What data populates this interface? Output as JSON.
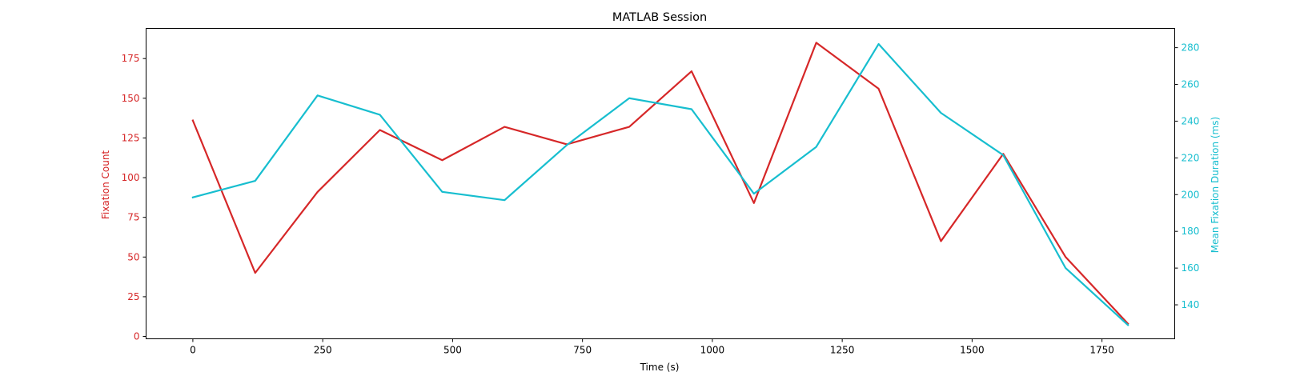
{
  "chart_data": {
    "type": "line",
    "title": "MATLAB Session",
    "xlabel": "Time (s)",
    "ylabel_left": "Fixation Count",
    "ylabel_right": "Mean Fixation Duration (ms)",
    "xlim": [
      -90,
      1890
    ],
    "ylim_left": [
      -1.5,
      194
    ],
    "ylim_right": [
      121.5,
      290.5
    ],
    "x_ticks": [
      0,
      250,
      500,
      750,
      1000,
      1250,
      1500,
      1750
    ],
    "y_ticks_left": [
      0,
      25,
      50,
      75,
      100,
      125,
      150,
      175
    ],
    "y_ticks_right": [
      140,
      160,
      180,
      200,
      220,
      240,
      260,
      280
    ],
    "grid": false,
    "x": [
      0,
      120,
      240,
      360,
      480,
      600,
      720,
      840,
      960,
      1080,
      1200,
      1320,
      1440,
      1560,
      1680,
      1800
    ],
    "series": [
      {
        "axis": "left",
        "color": "#d62728",
        "values": [
          136,
          40,
          91,
          130,
          111,
          132,
          121,
          132,
          167,
          84,
          185,
          156,
          60,
          115,
          50,
          8
        ]
      },
      {
        "axis": "right",
        "color": "#17becf",
        "values": [
          198.5,
          207.5,
          254,
          243.5,
          201.5,
          197,
          227,
          252.5,
          246.5,
          200.5,
          226,
          282,
          244.5,
          221.5,
          160,
          129
        ]
      }
    ]
  }
}
